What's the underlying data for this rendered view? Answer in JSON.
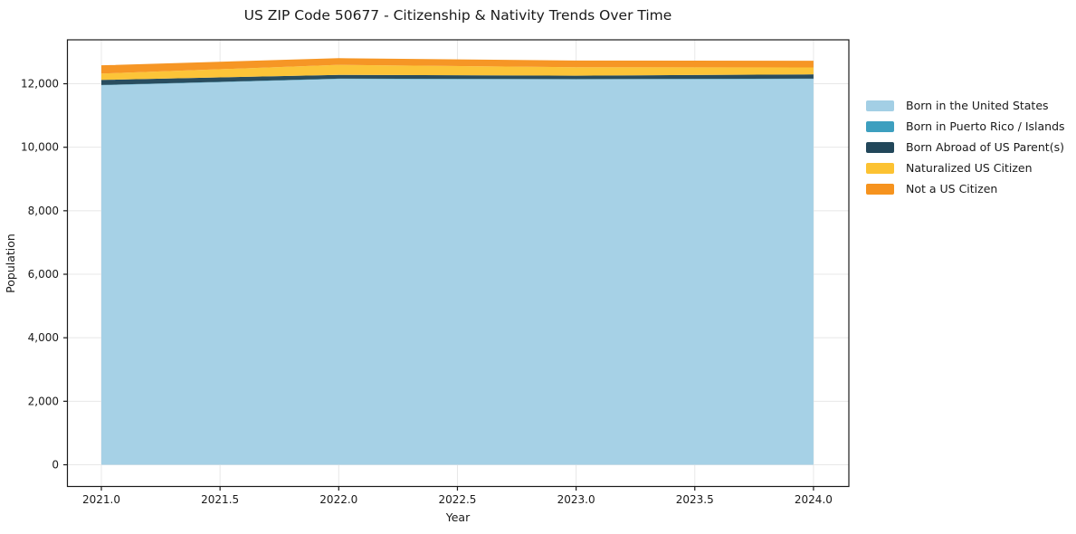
{
  "figure_title": "US ZIP Code 50677 - Citizenship & Nativity Trends Over Time",
  "chart_data": {
    "type": "area",
    "stacked": true,
    "title": "US ZIP Code 50677 - Citizenship & Nativity Trends Over Time",
    "xlabel": "Year",
    "ylabel": "Population",
    "x": [
      2021,
      2022,
      2023,
      2024
    ],
    "series": [
      {
        "name": "Born in the United States",
        "color": "#a3cfe5",
        "values": [
          11950,
          12150,
          12135,
          12150
        ]
      },
      {
        "name": "Born in Puerto Rico / Islands",
        "color": "#3d9fbf",
        "values": [
          10,
          10,
          10,
          10
        ]
      },
      {
        "name": "Born Abroad of US Parent(s)",
        "color": "#22475a",
        "values": [
          160,
          120,
          110,
          135
        ]
      },
      {
        "name": "Naturalized US Citizen",
        "color": "#fcc232",
        "values": [
          200,
          315,
          265,
          220
        ]
      },
      {
        "name": "Not a US Citizen",
        "color": "#f6931e",
        "values": [
          260,
          210,
          210,
          210
        ]
      }
    ],
    "totals": [
      12580,
      12805,
      12730,
      12725
    ],
    "x_ticks": {
      "values": [
        2021.0,
        2021.5,
        2022.0,
        2022.5,
        2023.0,
        2023.5,
        2024.0
      ],
      "labels": [
        "2021.0",
        "2021.5",
        "2022.0",
        "2022.5",
        "2023.0",
        "2023.5",
        "2024.0"
      ]
    },
    "y_ticks": {
      "values": [
        0,
        2000,
        4000,
        6000,
        8000,
        10000,
        12000
      ],
      "labels": [
        "0",
        "2,000",
        "4,000",
        "6,000",
        "8,000",
        "10,000",
        "12,000"
      ]
    },
    "xlim": [
      2020.857,
      2024.149
    ],
    "ylim": [
      -684,
      13383
    ],
    "grid": true,
    "legend_position": "right-outside",
    "style": {
      "background": "#ffffff",
      "grid_color": "#e8e8e8",
      "spine_color": "#1a1a1a",
      "text_color": "#1a1a1a"
    }
  }
}
